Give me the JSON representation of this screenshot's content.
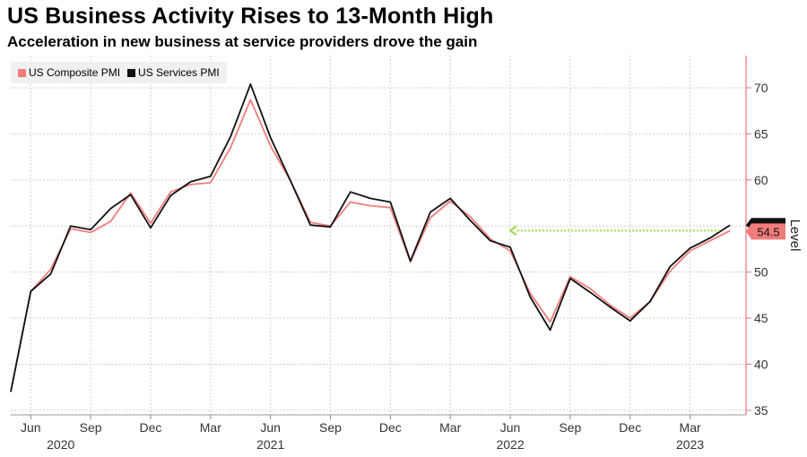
{
  "title": "US Business Activity Rises to 13-Month High",
  "subtitle": "Acceleration in new business at service providers drove the gain",
  "colors": {
    "composite": "#f27c7c",
    "services": "#111111",
    "axis": "#e8767a",
    "arrow": "#9be04e",
    "grid": "#d0d0d0"
  },
  "chart_data": {
    "type": "line",
    "x_labels": [
      {
        "index": 1,
        "label": "Jun"
      },
      {
        "index": 4,
        "label": "Sep"
      },
      {
        "index": 7,
        "label": "Dec"
      },
      {
        "index": 10,
        "label": "Mar"
      },
      {
        "index": 13,
        "label": "Jun"
      },
      {
        "index": 16,
        "label": "Sep"
      },
      {
        "index": 19,
        "label": "Dec"
      },
      {
        "index": 22,
        "label": "Mar"
      },
      {
        "index": 25,
        "label": "Jun"
      },
      {
        "index": 28,
        "label": "Sep"
      },
      {
        "index": 31,
        "label": "Dec"
      },
      {
        "index": 34,
        "label": "Mar"
      }
    ],
    "year_labels": [
      {
        "index": 2.5,
        "label": "2020"
      },
      {
        "index": 13,
        "label": "2021"
      },
      {
        "index": 25,
        "label": "2022"
      },
      {
        "index": 34,
        "label": "2023"
      }
    ],
    "x_range": [
      0,
      36.8
    ],
    "ylabel": "Level",
    "ylim": [
      34.5,
      73.5
    ],
    "yticks": [
      35,
      40,
      45,
      50,
      55,
      60,
      65,
      70
    ],
    "grid": true,
    "legend_position": "top-left",
    "series": [
      {
        "name": "US Composite PMI",
        "key": "composite",
        "values": [
          37.0,
          47.9,
          50.3,
          54.7,
          54.3,
          55.5,
          58.6,
          55.3,
          58.7,
          59.5,
          59.7,
          63.5,
          68.7,
          63.7,
          59.9,
          55.4,
          55.0,
          57.6,
          57.2,
          57.0,
          51.1,
          55.9,
          57.7,
          56.0,
          53.6,
          52.3,
          47.7,
          44.6,
          49.5,
          48.2,
          46.4,
          45.0,
          46.8,
          50.1,
          52.3,
          53.4,
          54.5
        ]
      },
      {
        "name": "US Services PMI",
        "key": "services",
        "values": [
          37.0,
          47.9,
          49.8,
          55.0,
          54.6,
          56.9,
          58.4,
          54.8,
          58.3,
          59.8,
          60.4,
          64.7,
          70.4,
          64.6,
          59.9,
          55.1,
          54.9,
          58.7,
          58.0,
          57.6,
          51.2,
          56.5,
          58.0,
          55.6,
          53.4,
          52.7,
          47.3,
          43.7,
          49.3,
          47.8,
          46.2,
          44.7,
          46.8,
          50.6,
          52.6,
          53.7,
          55.1
        ]
      }
    ],
    "last_value_label": "54.5",
    "annotation": {
      "type": "arrow",
      "from_index": 35.5,
      "to_index": 25,
      "y": 54.5
    }
  }
}
